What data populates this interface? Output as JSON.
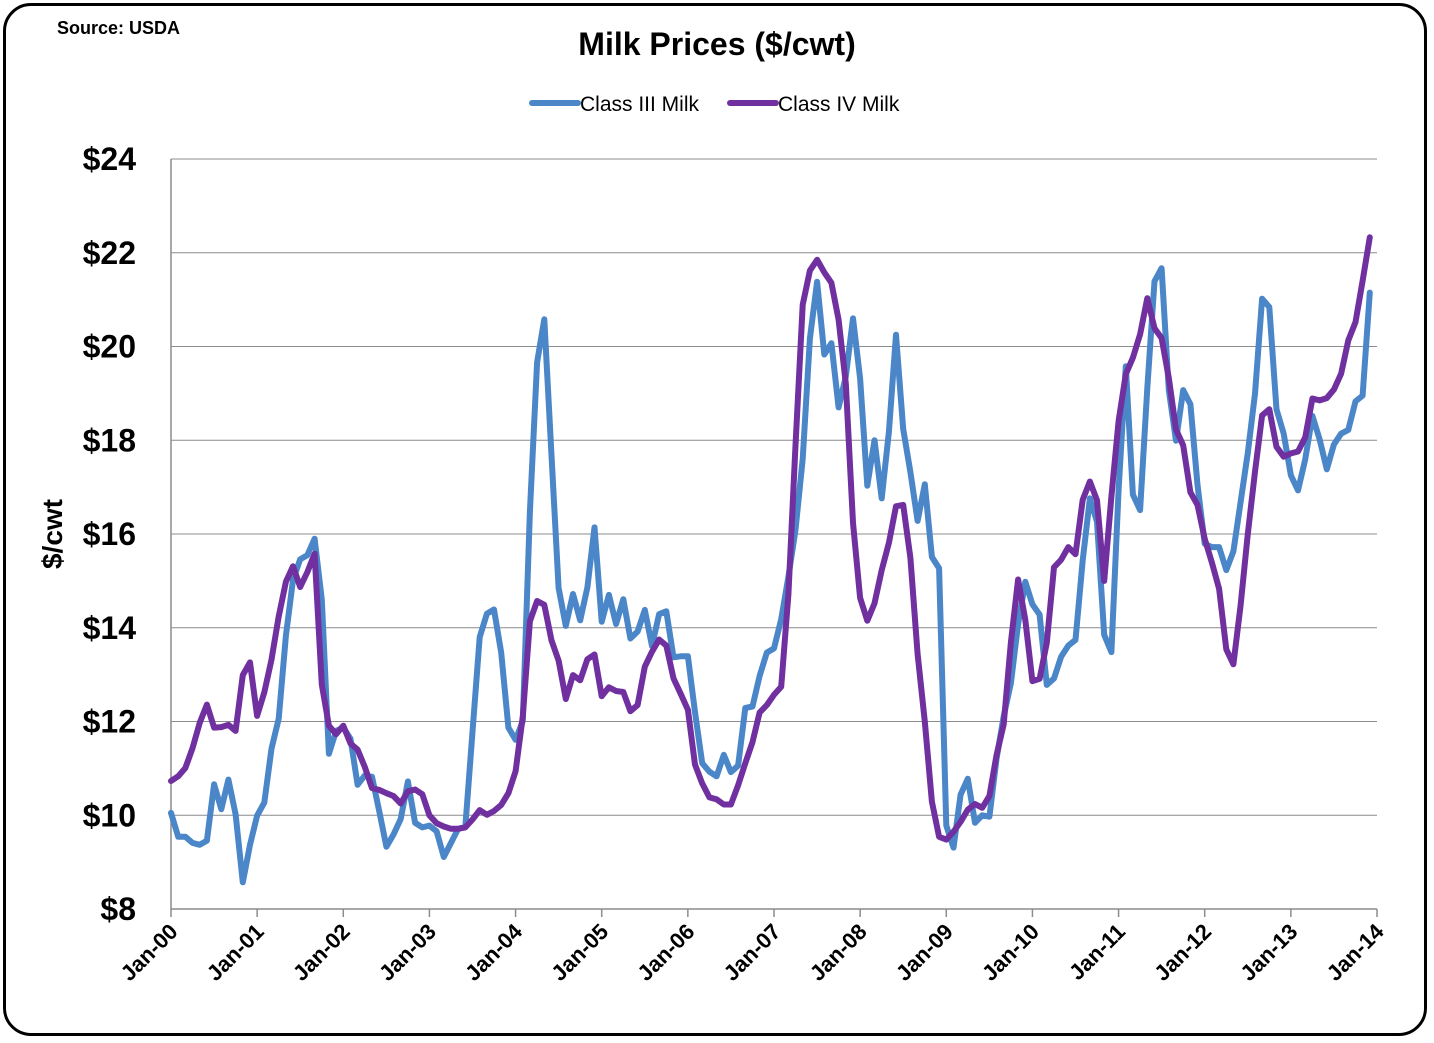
{
  "source_note": "Source: USDA",
  "chart_data": {
    "type": "line",
    "title": "Milk Prices ($/cwt)",
    "xlabel": "",
    "ylabel": "$/cwt",
    "ylim": [
      8,
      24
    ],
    "y_ticks": [
      8,
      10,
      12,
      14,
      16,
      18,
      20,
      22,
      24
    ],
    "y_tick_labels": [
      "$8",
      "$10",
      "$12",
      "$14",
      "$16",
      "$18",
      "$20",
      "$22",
      "$24"
    ],
    "x_tick_labels": [
      "Jan-00",
      "Jan-01",
      "Jan-02",
      "Jan-03",
      "Jan-04",
      "Jan-05",
      "Jan-06",
      "Jan-07",
      "Jan-08",
      "Jan-09",
      "Jan-10",
      "Jan-11",
      "Jan-12",
      "Jan-13",
      "Jan-14"
    ],
    "x_start": "Jan-00",
    "x_frequency": "monthly",
    "grid": "horizontal",
    "legend_position": "top",
    "series": [
      {
        "name": "Class III Milk",
        "color": "#4A86C8",
        "values": [
          10.05,
          9.54,
          9.54,
          9.41,
          9.37,
          9.46,
          10.66,
          10.13,
          10.76,
          10.02,
          8.57,
          9.37,
          9.99,
          10.27,
          11.42,
          12.06,
          13.83,
          15.02,
          15.46,
          15.55,
          15.9,
          14.6,
          11.31,
          11.8,
          11.87,
          11.63,
          10.65,
          10.85,
          10.82,
          10.09,
          9.33,
          9.59,
          9.92,
          10.72,
          9.84,
          9.74,
          9.78,
          9.66,
          9.11,
          9.41,
          9.71,
          9.75,
          11.78,
          13.8,
          14.3,
          14.39,
          13.47,
          11.87,
          11.61,
          12.01,
          16.48,
          19.66,
          20.58,
          17.68,
          14.85,
          14.04,
          14.72,
          14.16,
          14.86,
          16.14,
          14.13,
          14.7,
          14.08,
          14.61,
          13.77,
          13.92,
          14.38,
          13.61,
          14.29,
          14.35,
          13.37,
          13.39,
          13.39,
          12.2,
          11.11,
          10.93,
          10.83,
          11.29,
          10.92,
          11.06,
          12.29,
          12.32,
          12.97,
          13.47,
          13.56,
          14.18,
          15.09,
          16.09,
          17.6,
          20.17,
          21.38,
          19.83,
          20.07,
          18.7,
          19.36,
          20.6,
          19.32,
          17.03,
          18.0,
          16.76,
          18.18,
          20.25,
          18.24,
          17.32,
          16.28,
          17.06,
          15.51,
          15.27,
          9.78,
          9.31,
          10.44,
          10.78,
          9.84,
          10.0,
          9.97,
          11.2,
          12.11,
          12.82,
          14.08,
          14.98,
          14.5,
          14.28,
          12.78,
          12.92,
          13.38,
          13.62,
          13.74,
          15.44,
          16.76,
          16.26,
          13.85,
          13.48,
          16.94,
          19.58,
          16.84,
          16.51,
          19.11,
          21.39,
          21.67,
          19.07,
          17.99,
          19.07,
          18.77,
          17.05,
          15.79,
          15.72,
          15.72,
          15.23,
          15.63,
          16.68,
          17.73,
          18.99,
          21.02,
          20.84,
          18.66,
          18.14,
          17.25,
          16.93,
          17.59,
          18.52,
          18.02,
          17.38,
          17.91,
          18.14,
          18.22,
          18.83,
          18.95,
          21.15
        ]
      },
      {
        "name": "Class IV Milk",
        "color": "#7030A0",
        "values": [
          10.73,
          10.83,
          11.01,
          11.43,
          11.97,
          12.36,
          11.87,
          11.88,
          11.93,
          11.8,
          12.99,
          13.26,
          12.12,
          12.62,
          13.32,
          14.24,
          14.98,
          15.31,
          14.87,
          15.19,
          15.58,
          12.79,
          11.91,
          11.73,
          11.91,
          11.53,
          11.4,
          11.03,
          10.58,
          10.54,
          10.47,
          10.41,
          10.25,
          10.51,
          10.55,
          10.45,
          10.0,
          9.83,
          9.76,
          9.71,
          9.71,
          9.74,
          9.91,
          10.11,
          10.01,
          10.09,
          10.22,
          10.47,
          10.94,
          12.11,
          14.14,
          14.57,
          14.49,
          13.73,
          13.3,
          12.48,
          12.99,
          12.88,
          13.33,
          13.43,
          12.54,
          12.73,
          12.65,
          12.63,
          12.22,
          12.35,
          13.17,
          13.49,
          13.75,
          13.62,
          12.92,
          12.59,
          12.25,
          11.08,
          10.68,
          10.38,
          10.34,
          10.23,
          10.23,
          10.64,
          11.11,
          11.56,
          12.19,
          12.35,
          12.57,
          12.74,
          14.71,
          17.89,
          20.89,
          21.62,
          21.85,
          21.58,
          21.36,
          20.57,
          19.21,
          16.24,
          14.64,
          14.15,
          14.52,
          15.23,
          15.81,
          16.59,
          16.62,
          15.49,
          13.44,
          12.0,
          10.29,
          9.54,
          9.48,
          9.65,
          9.86,
          10.12,
          10.24,
          10.16,
          10.41,
          11.28,
          11.94,
          13.69,
          15.03,
          14.17,
          12.86,
          12.91,
          13.68,
          15.29,
          15.45,
          15.72,
          15.57,
          16.73,
          17.12,
          16.72,
          15.0,
          16.8,
          18.41,
          19.41,
          19.76,
          20.26,
          21.03,
          20.39,
          20.18,
          19.33,
          18.23,
          17.89,
          16.89,
          16.62,
          15.9,
          15.39,
          14.83,
          13.54,
          13.22,
          14.48,
          16.0,
          17.33,
          18.53,
          18.66,
          17.86,
          17.65,
          17.72,
          17.76,
          18.06,
          18.89,
          18.85,
          18.9,
          19.08,
          19.42,
          20.13,
          20.52,
          21.4,
          22.33
        ]
      }
    ]
  }
}
